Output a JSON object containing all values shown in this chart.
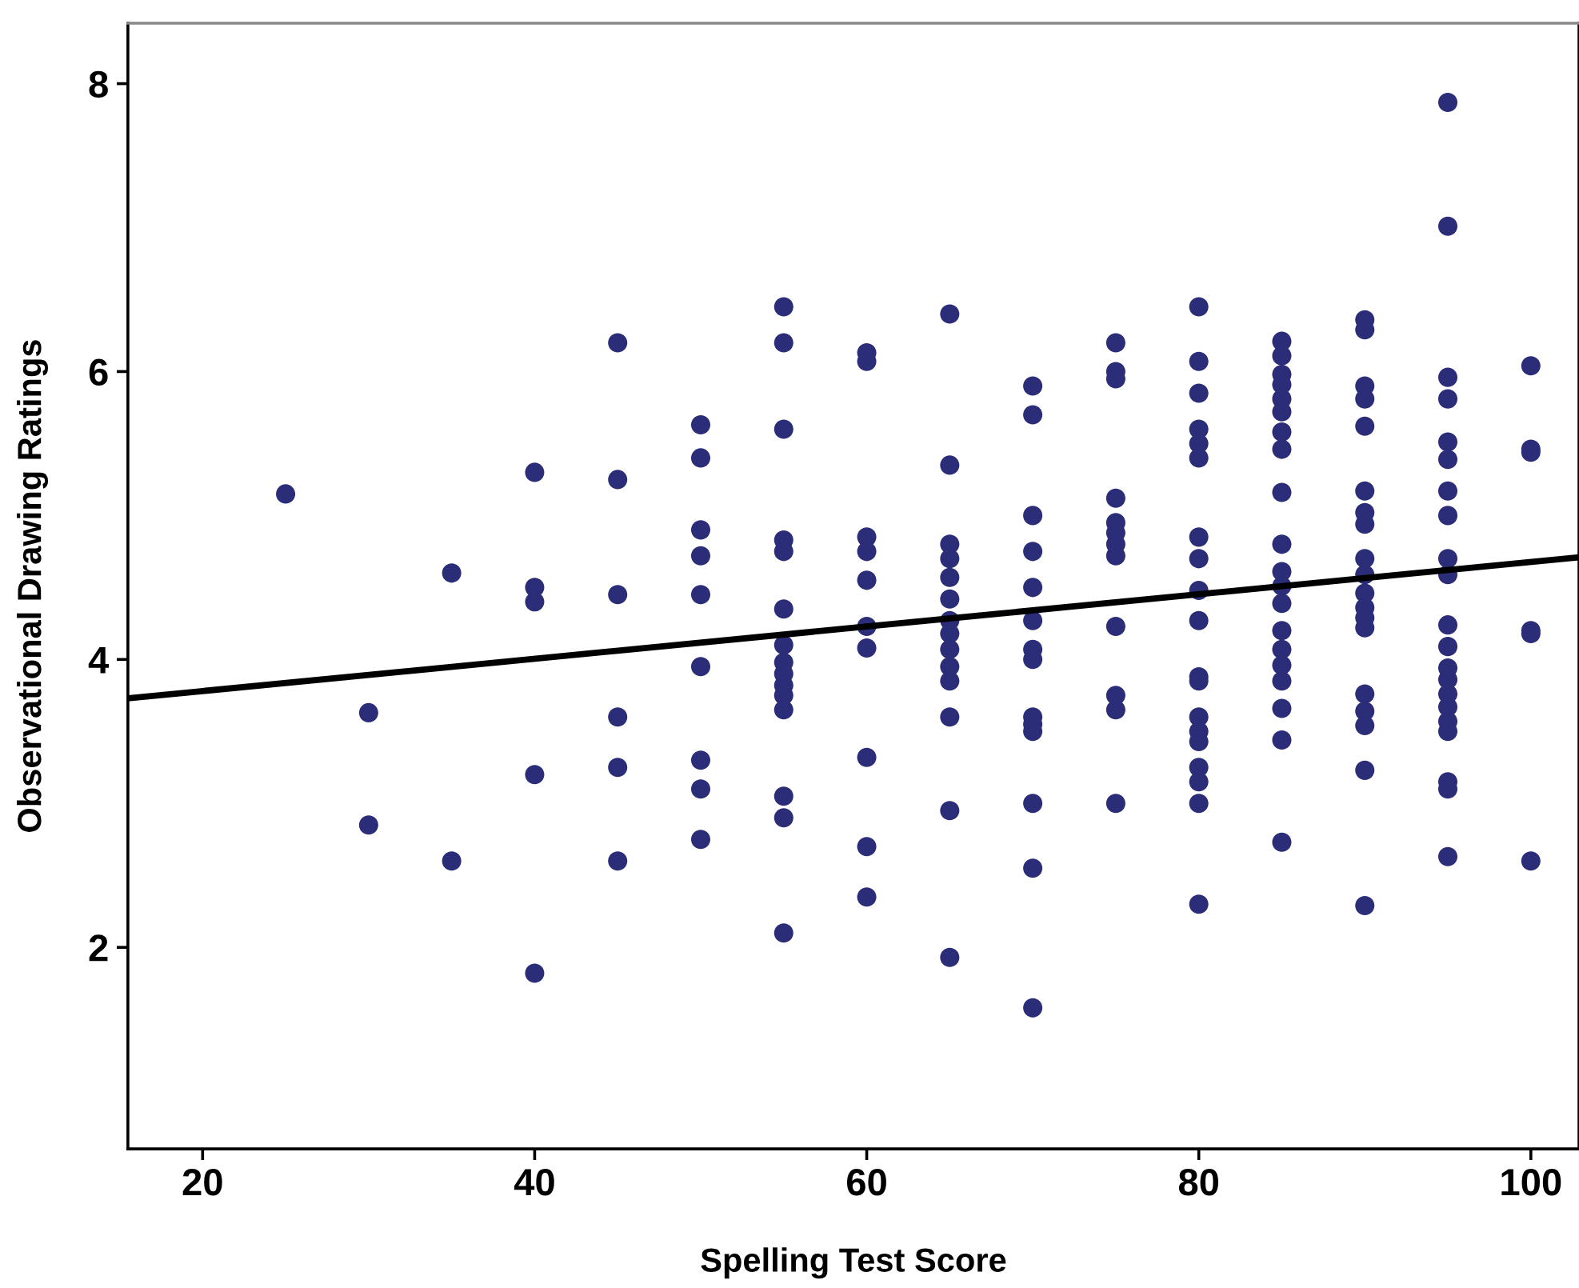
{
  "chart_data": {
    "type": "scatter",
    "xlabel": "Spelling Test Score",
    "ylabel": "Observational Drawing Ratings",
    "xlim": [
      15.5,
      102.9
    ],
    "ylim": [
      0.6,
      8.42
    ],
    "xticks": [
      20,
      40,
      60,
      80,
      100
    ],
    "yticks": [
      2,
      4,
      6,
      8
    ],
    "grid": false,
    "legend": false,
    "marker": "circle",
    "series": [
      {
        "color": "#2b2d78",
        "x": [
          25,
          30,
          30,
          35,
          35,
          40,
          40,
          40,
          40,
          40,
          45,
          45,
          45,
          45,
          45,
          45,
          50,
          50,
          50,
          50,
          50,
          50,
          50,
          50,
          50,
          55,
          55,
          55,
          55,
          55,
          55,
          55,
          55,
          55,
          55,
          55,
          55,
          55,
          55,
          55,
          60,
          60,
          60,
          60,
          60,
          60,
          60,
          60,
          60,
          60,
          65,
          65,
          65,
          65,
          65,
          65,
          65,
          65,
          65,
          65,
          65,
          65,
          65,
          65,
          70,
          70,
          70,
          70,
          70,
          70,
          70,
          70,
          70,
          70,
          70,
          70,
          70,
          70,
          75,
          75,
          75,
          75,
          75,
          75,
          75,
          75,
          75,
          75,
          75,
          75,
          80,
          80,
          80,
          80,
          80,
          80,
          80,
          80,
          80,
          80,
          80,
          80,
          80,
          80,
          80,
          80,
          80,
          80,
          80,
          85,
          85,
          85,
          85,
          85,
          85,
          85,
          85,
          85,
          85,
          85,
          85,
          85,
          85,
          85,
          85,
          85,
          85,
          85,
          85,
          90,
          90,
          90,
          90,
          90,
          90,
          90,
          90,
          90,
          90,
          90,
          90,
          90,
          90,
          90,
          90,
          90,
          90,
          90,
          95,
          95,
          95,
          95,
          95,
          95,
          95,
          95,
          95,
          95,
          95,
          95,
          95,
          95,
          95,
          95,
          95,
          95,
          95,
          95,
          95,
          100,
          100,
          100,
          100,
          100,
          100
        ],
        "values": [
          5.15,
          3.63,
          2.85,
          4.6,
          2.6,
          5.3,
          4.5,
          4.4,
          3.2,
          1.82,
          6.2,
          5.25,
          4.45,
          3.6,
          3.25,
          2.6,
          5.63,
          5.4,
          4.9,
          4.72,
          4.45,
          3.95,
          3.3,
          3.1,
          2.75,
          6.45,
          6.2,
          5.6,
          4.83,
          4.75,
          4.35,
          4.1,
          3.98,
          3.9,
          3.82,
          3.75,
          3.65,
          3.05,
          2.9,
          2.1,
          6.13,
          6.07,
          4.85,
          4.75,
          4.55,
          4.23,
          4.08,
          3.32,
          2.7,
          2.35,
          6.4,
          5.35,
          4.8,
          4.7,
          4.57,
          4.42,
          4.27,
          4.18,
          4.07,
          3.95,
          3.85,
          3.6,
          2.95,
          1.93,
          5.9,
          5.7,
          5.0,
          4.75,
          4.5,
          4.27,
          4.07,
          4.0,
          3.6,
          3.55,
          3.5,
          3.0,
          2.55,
          1.58,
          6.2,
          6.0,
          5.95,
          5.12,
          4.95,
          4.88,
          4.8,
          4.72,
          4.23,
          3.75,
          3.65,
          3.0,
          6.45,
          6.07,
          5.85,
          5.6,
          5.5,
          5.4,
          4.85,
          4.7,
          4.48,
          4.27,
          3.88,
          3.85,
          3.6,
          3.5,
          3.43,
          3.25,
          3.15,
          3.0,
          2.3,
          6.21,
          6.11,
          5.98,
          5.91,
          5.81,
          5.72,
          5.58,
          5.46,
          5.16,
          4.8,
          4.61,
          4.51,
          4.39,
          4.2,
          4.07,
          3.96,
          3.85,
          3.66,
          3.44,
          2.73,
          6.36,
          6.29,
          5.9,
          5.81,
          5.62,
          5.17,
          5.02,
          4.94,
          4.7,
          4.59,
          4.46,
          4.36,
          4.29,
          4.22,
          3.76,
          3.64,
          3.54,
          3.23,
          2.29,
          7.87,
          7.01,
          5.96,
          5.81,
          5.51,
          5.39,
          5.17,
          5.0,
          4.7,
          4.59,
          4.24,
          4.09,
          3.94,
          3.86,
          3.76,
          3.67,
          3.57,
          3.5,
          3.15,
          3.1,
          2.63,
          6.04,
          5.46,
          5.44,
          4.2,
          4.18,
          2.6
        ]
      },
      {
        "type": "line",
        "color": "#000000",
        "marker": "none",
        "line_style": "solid",
        "x": [
          15.5,
          102.9
        ],
        "values": [
          3.73,
          4.71
        ]
      }
    ]
  }
}
